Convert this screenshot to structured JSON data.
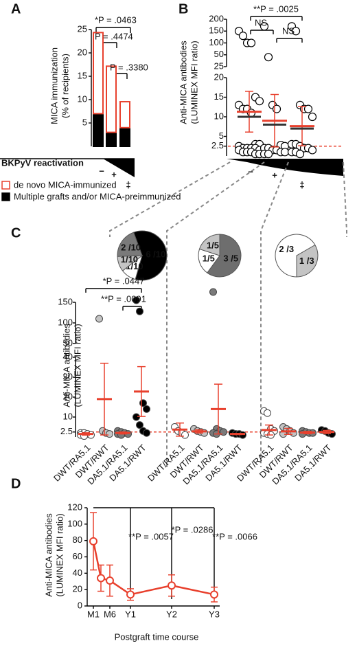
{
  "chart_data": [
    {
      "type": "bar",
      "panel": "A",
      "ylabel": [
        "MICA immunization",
        "(% of recipients)"
      ],
      "xlabel": "BKPyV reactivation",
      "categories": [
        "−",
        "+",
        "‡"
      ],
      "series": [
        {
          "name": "Multiple grafts and/or MICA-preimmunized",
          "color": "#000000",
          "values": [
            7,
            3,
            4
          ]
        },
        {
          "name": "de novo MICA-immunized",
          "color": "#e8402d",
          "values": [
            17.5,
            14.3,
            5.7
          ]
        }
      ],
      "ylim": [
        0,
        25
      ],
      "yticks": [
        5,
        10,
        15,
        20,
        25
      ],
      "annotations": [
        "*P = .0463",
        "P = .4474",
        "P = .3380"
      ]
    },
    {
      "type": "dot",
      "panel": "B",
      "ylabel": [
        "Anti-MICA antibodies",
        "(LUMINEX MFI ratio)"
      ],
      "categories": [
        "−",
        "+",
        "‡"
      ],
      "color": "#e8402d",
      "ylim": [
        [
          0,
          20
        ],
        [
          25,
          200
        ]
      ],
      "yticks": [
        2.5,
        5,
        10,
        15,
        20,
        25,
        50,
        100,
        150,
        200
      ],
      "threshold": 2.5,
      "groups": [
        {
          "values": [
            150,
            130,
            100,
            100,
            15,
            14,
            13,
            12,
            12,
            11,
            3,
            3,
            2.5,
            2,
            2,
            2,
            2,
            1.5,
            1.5,
            1,
            1,
            1,
            0.5,
            0.5
          ],
          "mean": 11.3,
          "error": 5.2,
          "median": 10
        },
        {
          "values": [
            170,
            45,
            13,
            12,
            2.8,
            2.5,
            2,
            2,
            1.5,
            1.5,
            1,
            1,
            0.5,
            0.5
          ],
          "mean": 9,
          "error": 6.7,
          "median": 8
        },
        {
          "values": [
            170,
            150,
            13,
            12,
            12,
            10,
            3,
            3,
            2.5,
            2,
            2,
            1.5,
            1,
            1,
            0.5
          ],
          "mean": 7.6,
          "error": 5,
          "median": 7
        }
      ],
      "annotations": [
        "**P = .0025",
        "NS",
        "NS"
      ]
    },
    {
      "type": "dot-groups",
      "panel": "C",
      "ylabel": [
        "Anti-MICA antibodies",
        "(LUMINEX MFI ratio)"
      ],
      "categories": [
        "DWT/RA5.1",
        "DWT/RWT",
        "DA5.1/RA5.1",
        "DA5.1/RWT"
      ],
      "colors": [
        "#ffffff",
        "#c4c4c4",
        "#7a7a7a",
        "#000000"
      ],
      "color": "#e8402d",
      "ylim": [
        [
          0,
          40
        ],
        [
          50,
          150
        ]
      ],
      "yticks": [
        2.5,
        10,
        20,
        30,
        40,
        50,
        100,
        150
      ],
      "threshold": 2.5,
      "groups": [
        {
          "pie": {
            "values": [
              0.6,
              0.1,
              0.1,
              0.2
            ],
            "value_labels": [
              "6 /10",
              "1/10",
              "1/10",
              "2 /10"
            ],
            "colors": [
              "#000000",
              "#ffffff",
              "#c4c4c4",
              "#7a7a7a"
            ]
          },
          "columns": [
            {
              "values": [
                2,
                2,
                1.5,
                1,
                1,
                0.5
              ],
              "mean": 1.5,
              "error": 0.6
            },
            {
              "values": [
                110,
                3,
                2,
                1.5
              ],
              "mean": 19,
              "error": 18
            },
            {
              "values": [
                3,
                2.5,
                2,
                1.5,
                1.5,
                1
              ],
              "mean": 2,
              "error": 0.5
            },
            {
              "values": [
                155,
                128,
                17,
                14,
                10,
                6,
                3,
                2
              ],
              "mean": 22.8,
              "error": 12.5
            }
          ]
        },
        {
          "pie": {
            "values": [
              0.6,
              0.2,
              0.2
            ],
            "value_labels": [
              "3 /5",
              "1/5",
              "1/5"
            ],
            "colors": [
              "#6e6e6e",
              "#ffffff",
              "#c4c4c4"
            ]
          },
          "columns": [
            {
              "values": [
                5,
                3,
                2,
                1
              ],
              "mean": 3.7,
              "error": 3.3
            },
            {
              "values": [
                4,
                3,
                2.5,
                2
              ],
              "mean": 2.8,
              "error": 0.8
            },
            {
              "values": [
                175,
                4,
                3,
                2.5,
                2,
                1.5
              ],
              "mean": 14,
              "error": 12.5
            },
            {
              "values": [
                2,
                1.5,
                1.5,
                1
              ],
              "mean": 1.5,
              "error": 0.3
            }
          ]
        },
        {
          "pie": {
            "values": [
              0.333,
              0.667
            ],
            "value_labels": [
              "1 /3",
              "2 /3"
            ],
            "colors": [
              "#c4c4c4",
              "#ffffff"
            ]
          },
          "columns": [
            {
              "values": [
                13,
                12,
                4,
                3,
                2,
                1.5,
                1
              ],
              "mean": 3.5,
              "error": 2.5
            },
            {
              "values": [
                5,
                4,
                3,
                2,
                1.5
              ],
              "mean": 2.8,
              "error": 1.5
            },
            {
              "values": [
                3,
                2.5,
                2,
                2,
                1.5
              ],
              "mean": 2.2,
              "error": 0.6
            },
            {
              "values": [
                3.5,
                3,
                2,
                1.5
              ],
              "mean": 2.5,
              "error": 0.8
            }
          ]
        }
      ],
      "annotations": [
        "*P = .0447",
        "**P = .0091"
      ]
    },
    {
      "type": "line",
      "panel": "D",
      "ylabel": [
        "Anti-MICA antibodies",
        "(LUMINEX MFI ratio)"
      ],
      "xlabel": "Postgraft time course",
      "categories": [
        "M1",
        null,
        "M6",
        "Y1",
        "Y2",
        "Y3"
      ],
      "values": [
        79,
        34,
        31,
        14,
        25,
        14
      ],
      "errors": [
        35,
        16,
        19,
        7,
        13,
        9
      ],
      "color": "#e8402d",
      "ylim": [
        0,
        120
      ],
      "yticks": [
        0,
        20,
        40,
        60,
        80,
        100,
        120
      ],
      "annotations": [
        "**P = .0057",
        "*P = .0286",
        "**P = .0066"
      ]
    }
  ]
}
